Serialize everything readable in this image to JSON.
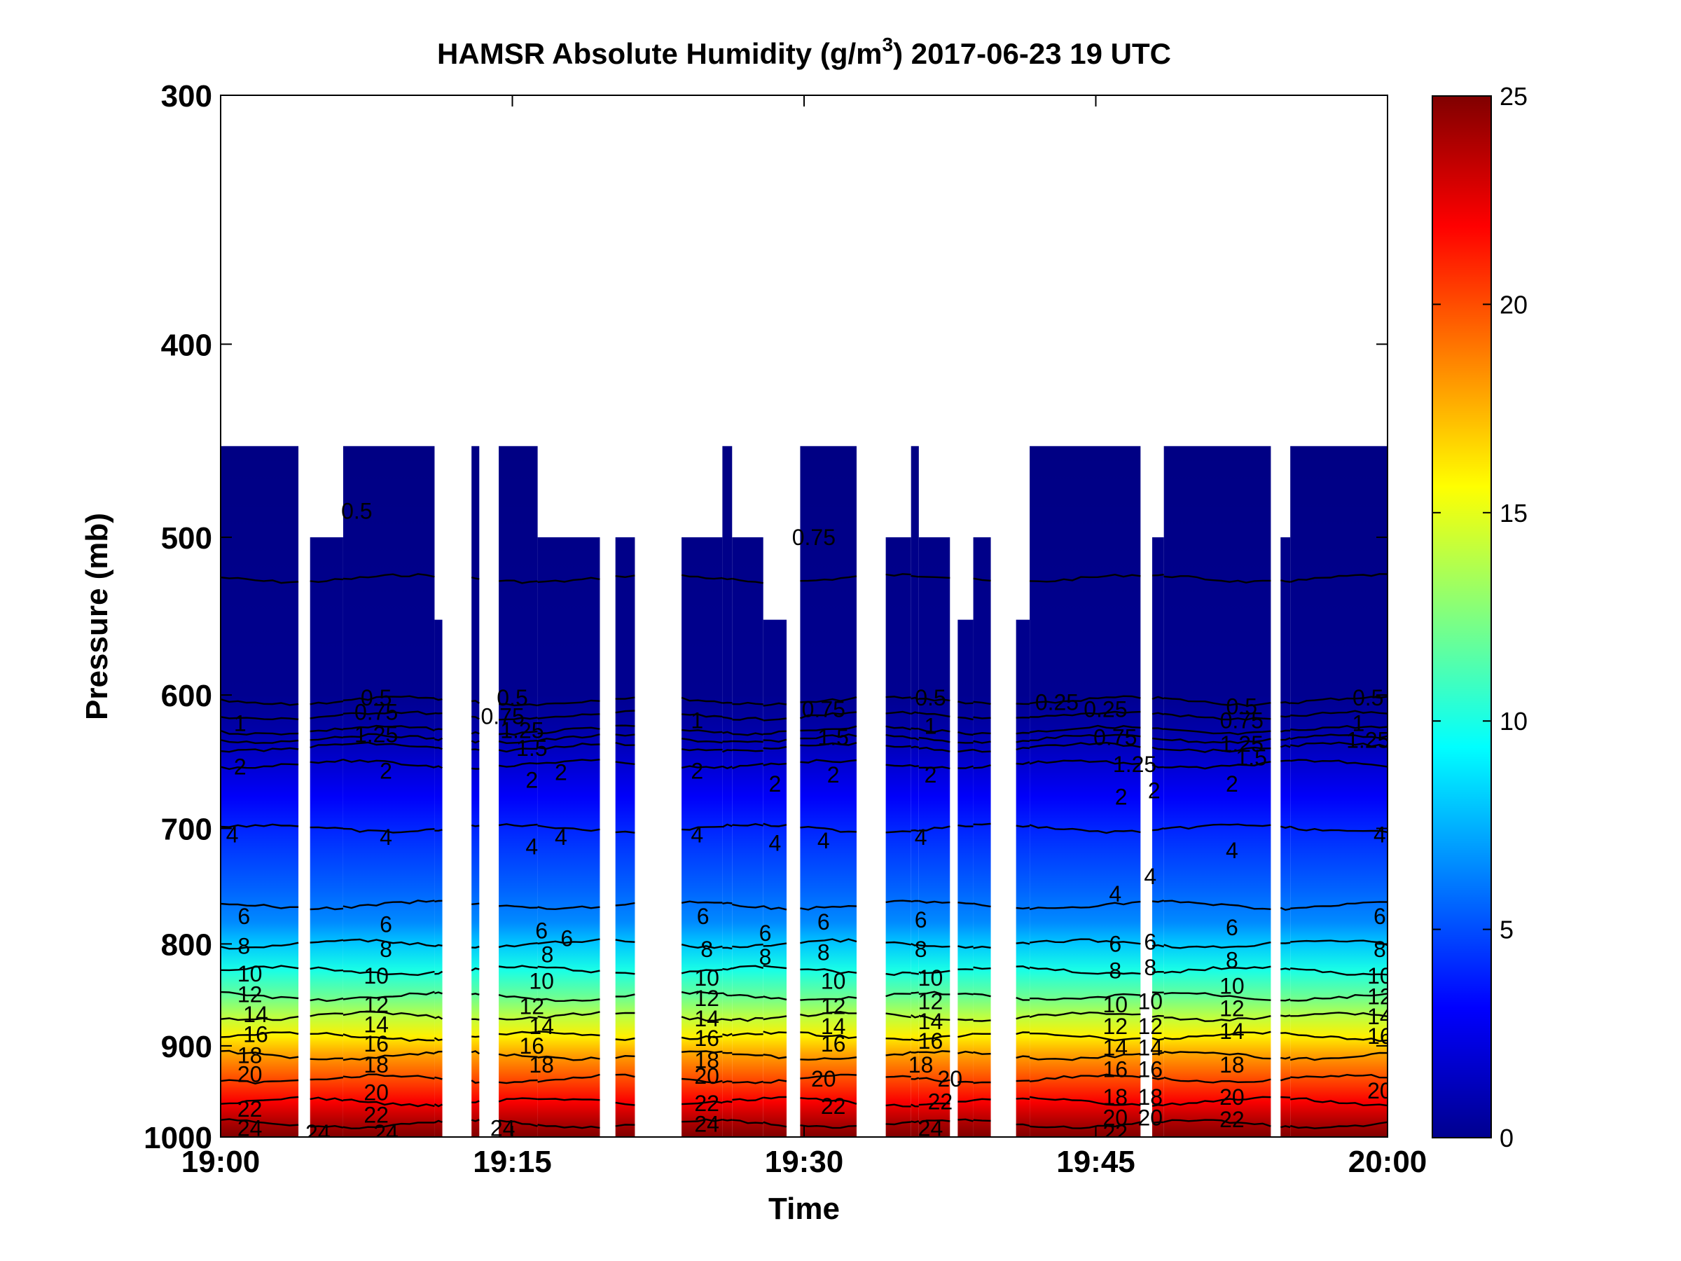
{
  "chart_data": {
    "type": "heatmap",
    "title": "HAMSR  Absolute Humidity (g/m",
    "title_superscript": "3",
    "title_suffix": ") 2017-06-23 19 UTC",
    "xlabel": "Time",
    "ylabel": "Pressure (mb)",
    "x_ticks": [
      "19:00",
      "19:15",
      "19:30",
      "19:45",
      "20:00"
    ],
    "x_range_minutes": [
      0,
      60
    ],
    "y_ticks": [
      "300",
      "400",
      "500",
      "600",
      "700",
      "800",
      "900",
      "1000"
    ],
    "y_range": [
      300,
      1000
    ],
    "y_scale": "log",
    "y_direction": "reversed",
    "colorbar": {
      "ticks": [
        "0",
        "5",
        "10",
        "15",
        "20",
        "25"
      ],
      "range": [
        0,
        25
      ],
      "colormap": "jet"
    },
    "data_top_pressure": 450,
    "contour_levels": [
      0.25,
      0.5,
      0.75,
      1,
      1.25,
      1.5,
      2,
      4,
      6,
      8,
      10,
      12,
      14,
      16,
      18,
      20,
      22,
      24
    ],
    "profile": [
      {
        "p": 450,
        "v": 0.1
      },
      {
        "p": 500,
        "v": 0.2
      },
      {
        "p": 550,
        "v": 0.3
      },
      {
        "p": 600,
        "v": 0.4
      },
      {
        "p": 625,
        "v": 1.0
      },
      {
        "p": 650,
        "v": 2.0
      },
      {
        "p": 675,
        "v": 3.0
      },
      {
        "p": 700,
        "v": 4.0
      },
      {
        "p": 750,
        "v": 5.5
      },
      {
        "p": 780,
        "v": 6.5
      },
      {
        "p": 800,
        "v": 8.0
      },
      {
        "p": 825,
        "v": 10.0
      },
      {
        "p": 850,
        "v": 12.0
      },
      {
        "p": 870,
        "v": 14.0
      },
      {
        "p": 890,
        "v": 16.0
      },
      {
        "p": 910,
        "v": 18.0
      },
      {
        "p": 935,
        "v": 20.0
      },
      {
        "p": 960,
        "v": 22.0
      },
      {
        "p": 985,
        "v": 24.0
      },
      {
        "p": 1000,
        "v": 25.0
      }
    ],
    "segments_minutes": [
      {
        "start": 0.0,
        "end": 4.0,
        "top": 450
      },
      {
        "start": 4.6,
        "end": 6.3,
        "top": 500
      },
      {
        "start": 6.3,
        "end": 11.0,
        "top": 450
      },
      {
        "start": 11.0,
        "end": 11.4,
        "top": 550
      },
      {
        "start": 12.9,
        "end": 13.3,
        "top": 450
      },
      {
        "start": 14.3,
        "end": 16.3,
        "top": 450
      },
      {
        "start": 16.3,
        "end": 19.5,
        "top": 500
      },
      {
        "start": 20.3,
        "end": 21.3,
        "top": 500
      },
      {
        "start": 23.7,
        "end": 25.8,
        "top": 500
      },
      {
        "start": 25.8,
        "end": 26.3,
        "top": 450
      },
      {
        "start": 26.3,
        "end": 27.9,
        "top": 500
      },
      {
        "start": 27.9,
        "end": 29.1,
        "top": 550
      },
      {
        "start": 29.8,
        "end": 32.7,
        "top": 450
      },
      {
        "start": 34.2,
        "end": 35.5,
        "top": 500
      },
      {
        "start": 35.5,
        "end": 35.9,
        "top": 450
      },
      {
        "start": 35.9,
        "end": 37.5,
        "top": 500
      },
      {
        "start": 37.9,
        "end": 38.7,
        "top": 550
      },
      {
        "start": 38.7,
        "end": 39.6,
        "top": 500
      },
      {
        "start": 40.9,
        "end": 41.6,
        "top": 550
      },
      {
        "start": 41.6,
        "end": 47.3,
        "top": 450
      },
      {
        "start": 47.9,
        "end": 48.5,
        "top": 500
      },
      {
        "start": 48.5,
        "end": 54.0,
        "top": 450
      },
      {
        "start": 54.5,
        "end": 55.0,
        "top": 500
      },
      {
        "start": 55.0,
        "end": 60.0,
        "top": 450
      }
    ],
    "contour_labels": [
      {
        "t": 7.0,
        "p": 485,
        "text": "0.5"
      },
      {
        "t": 30.5,
        "p": 500,
        "text": "0.75"
      },
      {
        "t": 8.0,
        "p": 602,
        "text": "0.5"
      },
      {
        "t": 8.0,
        "p": 612,
        "text": "0.75"
      },
      {
        "t": 8.0,
        "p": 628,
        "text": "1.25"
      },
      {
        "t": 1.0,
        "p": 620,
        "text": "1"
      },
      {
        "t": 15.0,
        "p": 602,
        "text": "0.5"
      },
      {
        "t": 14.5,
        "p": 615,
        "text": "0.75"
      },
      {
        "t": 15.5,
        "p": 625,
        "text": "1.25"
      },
      {
        "t": 16.0,
        "p": 638,
        "text": "1.5"
      },
      {
        "t": 24.5,
        "p": 618,
        "text": "1"
      },
      {
        "t": 31.0,
        "p": 610,
        "text": "0.75"
      },
      {
        "t": 31.5,
        "p": 630,
        "text": "1.5"
      },
      {
        "t": 36.5,
        "p": 602,
        "text": "0.5"
      },
      {
        "t": 36.5,
        "p": 622,
        "text": "1"
      },
      {
        "t": 43.0,
        "p": 605,
        "text": "0.25"
      },
      {
        "t": 45.5,
        "p": 610,
        "text": "0.25"
      },
      {
        "t": 46.0,
        "p": 630,
        "text": "0.75"
      },
      {
        "t": 47.0,
        "p": 650,
        "text": "1.25"
      },
      {
        "t": 52.5,
        "p": 608,
        "text": "0.5"
      },
      {
        "t": 52.5,
        "p": 618,
        "text": "0.75"
      },
      {
        "t": 52.5,
        "p": 635,
        "text": "1.25"
      },
      {
        "t": 53.0,
        "p": 645,
        "text": "1.5"
      },
      {
        "t": 59.0,
        "p": 602,
        "text": "0.5"
      },
      {
        "t": 58.5,
        "p": 620,
        "text": "1"
      },
      {
        "t": 59.0,
        "p": 632,
        "text": "1.25"
      },
      {
        "t": 1.0,
        "p": 652,
        "text": "2"
      },
      {
        "t": 8.5,
        "p": 655,
        "text": "2"
      },
      {
        "t": 16.0,
        "p": 662,
        "text": "2"
      },
      {
        "t": 17.5,
        "p": 656,
        "text": "2"
      },
      {
        "t": 24.5,
        "p": 655,
        "text": "2"
      },
      {
        "t": 28.5,
        "p": 665,
        "text": "2"
      },
      {
        "t": 31.5,
        "p": 658,
        "text": "2"
      },
      {
        "t": 36.5,
        "p": 658,
        "text": "2"
      },
      {
        "t": 46.3,
        "p": 675,
        "text": "2"
      },
      {
        "t": 48.0,
        "p": 670,
        "text": "2"
      },
      {
        "t": 52.0,
        "p": 665,
        "text": "2"
      },
      {
        "t": 0.6,
        "p": 705,
        "text": "4"
      },
      {
        "t": 8.5,
        "p": 707,
        "text": "4"
      },
      {
        "t": 16.0,
        "p": 715,
        "text": "4"
      },
      {
        "t": 17.5,
        "p": 707,
        "text": "4"
      },
      {
        "t": 24.5,
        "p": 705,
        "text": "4"
      },
      {
        "t": 28.5,
        "p": 712,
        "text": "4"
      },
      {
        "t": 31.0,
        "p": 710,
        "text": "4"
      },
      {
        "t": 36.0,
        "p": 707,
        "text": "4"
      },
      {
        "t": 46.0,
        "p": 755,
        "text": "4"
      },
      {
        "t": 47.8,
        "p": 740,
        "text": "4"
      },
      {
        "t": 52.0,
        "p": 718,
        "text": "4"
      },
      {
        "t": 59.6,
        "p": 705,
        "text": "4"
      },
      {
        "t": 1.2,
        "p": 775,
        "text": "6"
      },
      {
        "t": 8.5,
        "p": 782,
        "text": "6"
      },
      {
        "t": 16.5,
        "p": 788,
        "text": "6"
      },
      {
        "t": 17.8,
        "p": 795,
        "text": "6"
      },
      {
        "t": 24.8,
        "p": 775,
        "text": "6"
      },
      {
        "t": 28.0,
        "p": 790,
        "text": "6"
      },
      {
        "t": 31.0,
        "p": 780,
        "text": "6"
      },
      {
        "t": 36.0,
        "p": 778,
        "text": "6"
      },
      {
        "t": 46.0,
        "p": 800,
        "text": "6"
      },
      {
        "t": 47.8,
        "p": 798,
        "text": "6"
      },
      {
        "t": 52.0,
        "p": 785,
        "text": "6"
      },
      {
        "t": 59.6,
        "p": 775,
        "text": "6"
      },
      {
        "t": 1.2,
        "p": 802,
        "text": "8"
      },
      {
        "t": 8.5,
        "p": 805,
        "text": "8"
      },
      {
        "t": 16.8,
        "p": 810,
        "text": "8"
      },
      {
        "t": 25.0,
        "p": 805,
        "text": "8"
      },
      {
        "t": 28.0,
        "p": 812,
        "text": "8"
      },
      {
        "t": 31.0,
        "p": 808,
        "text": "8"
      },
      {
        "t": 36.0,
        "p": 805,
        "text": "8"
      },
      {
        "t": 46.0,
        "p": 825,
        "text": "8"
      },
      {
        "t": 47.8,
        "p": 822,
        "text": "8"
      },
      {
        "t": 52.0,
        "p": 815,
        "text": "8"
      },
      {
        "t": 59.6,
        "p": 805,
        "text": "8"
      },
      {
        "t": 1.5,
        "p": 828,
        "text": "10"
      },
      {
        "t": 8.0,
        "p": 830,
        "text": "10"
      },
      {
        "t": 16.5,
        "p": 835,
        "text": "10"
      },
      {
        "t": 25.0,
        "p": 832,
        "text": "10"
      },
      {
        "t": 31.5,
        "p": 835,
        "text": "10"
      },
      {
        "t": 36.5,
        "p": 832,
        "text": "10"
      },
      {
        "t": 46.0,
        "p": 858,
        "text": "10"
      },
      {
        "t": 47.8,
        "p": 855,
        "text": "10"
      },
      {
        "t": 52.0,
        "p": 840,
        "text": "10"
      },
      {
        "t": 59.6,
        "p": 830,
        "text": "10"
      },
      {
        "t": 1.5,
        "p": 848,
        "text": "12"
      },
      {
        "t": 8.0,
        "p": 858,
        "text": "12"
      },
      {
        "t": 16.0,
        "p": 860,
        "text": "12"
      },
      {
        "t": 25.0,
        "p": 852,
        "text": "12"
      },
      {
        "t": 31.5,
        "p": 860,
        "text": "12"
      },
      {
        "t": 36.5,
        "p": 855,
        "text": "12"
      },
      {
        "t": 46.0,
        "p": 880,
        "text": "12"
      },
      {
        "t": 47.8,
        "p": 880,
        "text": "12"
      },
      {
        "t": 52.0,
        "p": 862,
        "text": "12"
      },
      {
        "t": 59.6,
        "p": 850,
        "text": "12"
      },
      {
        "t": 1.8,
        "p": 868,
        "text": "14"
      },
      {
        "t": 8.0,
        "p": 878,
        "text": "14"
      },
      {
        "t": 16.5,
        "p": 880,
        "text": "14"
      },
      {
        "t": 25.0,
        "p": 872,
        "text": "14"
      },
      {
        "t": 31.5,
        "p": 880,
        "text": "14"
      },
      {
        "t": 36.5,
        "p": 875,
        "text": "14"
      },
      {
        "t": 46.0,
        "p": 902,
        "text": "14"
      },
      {
        "t": 47.8,
        "p": 902,
        "text": "14"
      },
      {
        "t": 52.0,
        "p": 885,
        "text": "14"
      },
      {
        "t": 59.6,
        "p": 870,
        "text": "14"
      },
      {
        "t": 1.8,
        "p": 888,
        "text": "16"
      },
      {
        "t": 8.0,
        "p": 898,
        "text": "16"
      },
      {
        "t": 16.0,
        "p": 900,
        "text": "16"
      },
      {
        "t": 25.0,
        "p": 892,
        "text": "16"
      },
      {
        "t": 31.5,
        "p": 898,
        "text": "16"
      },
      {
        "t": 36.5,
        "p": 895,
        "text": "16"
      },
      {
        "t": 46.0,
        "p": 925,
        "text": "16"
      },
      {
        "t": 47.8,
        "p": 925,
        "text": "16"
      },
      {
        "t": 59.6,
        "p": 890,
        "text": "16"
      },
      {
        "t": 1.5,
        "p": 910,
        "text": "18"
      },
      {
        "t": 8.0,
        "p": 920,
        "text": "18"
      },
      {
        "t": 16.5,
        "p": 920,
        "text": "18"
      },
      {
        "t": 25.0,
        "p": 915,
        "text": "18"
      },
      {
        "t": 36.0,
        "p": 920,
        "text": "18"
      },
      {
        "t": 46.0,
        "p": 955,
        "text": "18"
      },
      {
        "t": 47.8,
        "p": 955,
        "text": "18"
      },
      {
        "t": 52.0,
        "p": 920,
        "text": "18"
      },
      {
        "t": 1.5,
        "p": 930,
        "text": "20"
      },
      {
        "t": 8.0,
        "p": 950,
        "text": "20"
      },
      {
        "t": 25.0,
        "p": 932,
        "text": "20"
      },
      {
        "t": 31.0,
        "p": 935,
        "text": "20"
      },
      {
        "t": 37.5,
        "p": 935,
        "text": "20"
      },
      {
        "t": 46.0,
        "p": 978,
        "text": "20"
      },
      {
        "t": 47.8,
        "p": 978,
        "text": "20"
      },
      {
        "t": 52.0,
        "p": 955,
        "text": "20"
      },
      {
        "t": 59.6,
        "p": 948,
        "text": "20"
      },
      {
        "t": 1.5,
        "p": 968,
        "text": "22"
      },
      {
        "t": 8.0,
        "p": 975,
        "text": "22"
      },
      {
        "t": 25.0,
        "p": 962,
        "text": "22"
      },
      {
        "t": 31.5,
        "p": 965,
        "text": "22"
      },
      {
        "t": 37.0,
        "p": 960,
        "text": "22"
      },
      {
        "t": 46.0,
        "p": 995,
        "text": "22"
      },
      {
        "t": 52.0,
        "p": 980,
        "text": "22"
      },
      {
        "t": 1.5,
        "p": 990,
        "text": "24"
      },
      {
        "t": 5.0,
        "p": 995,
        "text": "24"
      },
      {
        "t": 8.5,
        "p": 995,
        "text": "24"
      },
      {
        "t": 14.5,
        "p": 990,
        "text": "24"
      },
      {
        "t": 25.0,
        "p": 985,
        "text": "24"
      },
      {
        "t": 36.5,
        "p": 990,
        "text": "24"
      }
    ]
  }
}
